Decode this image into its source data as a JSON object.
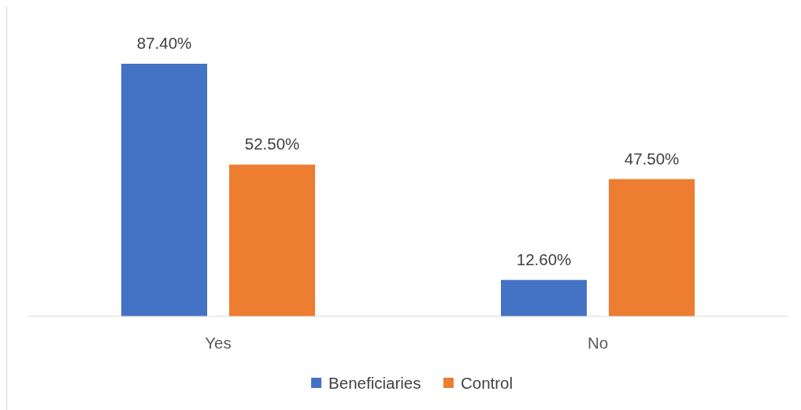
{
  "chart_data": {
    "type": "bar",
    "categories": [
      "Yes",
      "No"
    ],
    "series": [
      {
        "name": "Beneficiaries",
        "color": "#4472c4",
        "values": [
          87.4,
          12.6
        ],
        "value_labels": [
          "87.40%",
          "12.60%"
        ]
      },
      {
        "name": "Control",
        "color": "#ed7d31",
        "values": [
          52.5,
          47.5
        ],
        "value_labels": [
          "52.50%",
          "47.50%"
        ]
      }
    ],
    "tick_labels": "x",
    "legend": "bottom"
  }
}
